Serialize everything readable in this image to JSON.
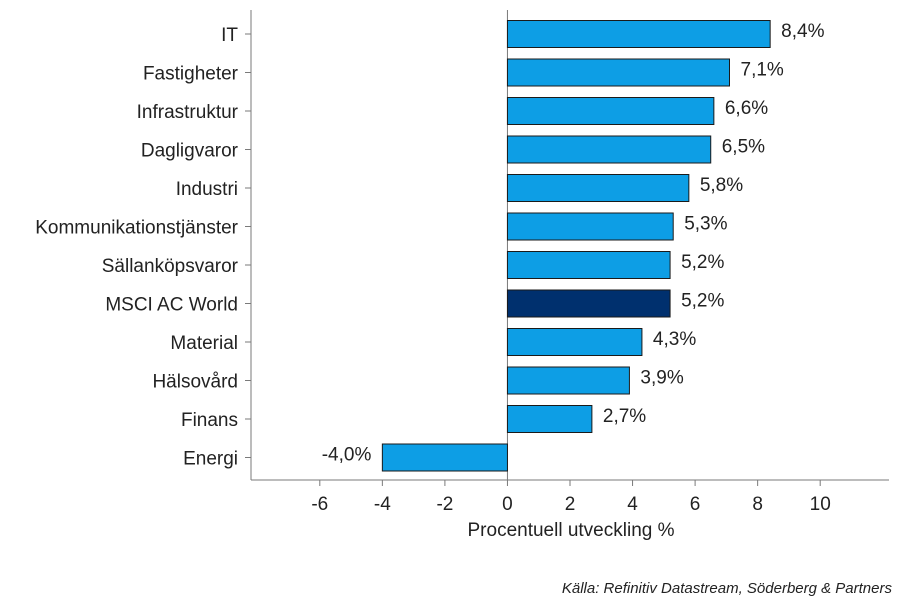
{
  "chart_data": {
    "type": "bar",
    "orientation": "horizontal",
    "categories": [
      "IT",
      "Fastigheter",
      "Infrastruktur",
      "Dagligvaror",
      "Industri",
      "Kommunikationstjänster",
      "Sällanköpsvaror",
      "MSCI AC World",
      "Material",
      "Hälsovård",
      "Finans",
      "Energi"
    ],
    "values": [
      8.4,
      7.1,
      6.6,
      6.5,
      5.8,
      5.3,
      5.2,
      5.2,
      4.3,
      3.9,
      2.7,
      -4.0
    ],
    "value_labels": [
      "8,4%",
      "7,1%",
      "6,6%",
      "6,5%",
      "5,8%",
      "5,3%",
      "5,2%",
      "5,2%",
      "4,3%",
      "3,9%",
      "2,7%",
      "-4,0%"
    ],
    "xlabel": "Procentuell utveckling %",
    "xlim": [
      -8.2,
      12.2
    ],
    "xticks": [
      -6,
      -4,
      -2,
      0,
      2,
      4,
      6,
      8,
      10
    ],
    "xtick_labels": [
      "-6",
      "-4",
      "-2",
      "0",
      "2",
      "4",
      "6",
      "8",
      "10"
    ],
    "bar_color": "#0d9ee5",
    "highlight_color": "#00306e",
    "highlight_category": "MSCI AC World",
    "legend": "none",
    "grid": false
  },
  "source_note": "Källa: Refinitiv Datastream, Söderberg & Partners"
}
